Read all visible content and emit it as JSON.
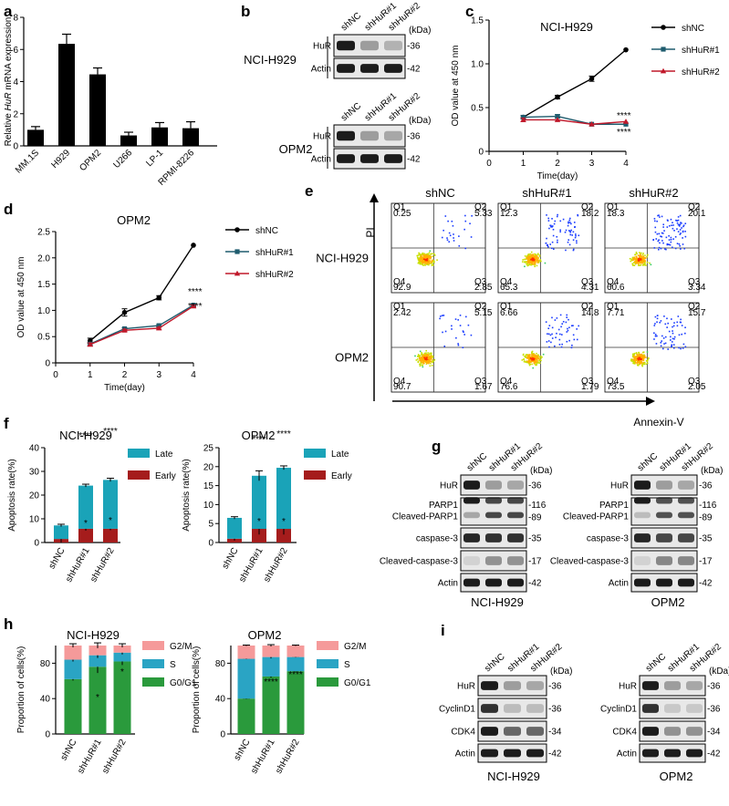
{
  "panels": {
    "a": {
      "letter": "a"
    },
    "b": {
      "letter": "b",
      "kda": "(kDa)",
      "blots": [
        {
          "cell": "NCI-H929",
          "lanes": [
            "shNC",
            "shHuR#1",
            "shHuR#2"
          ],
          "rows": [
            {
              "protein": "HuR",
              "kda": "-36"
            },
            {
              "protein": "Actin",
              "kda": "-42"
            }
          ]
        },
        {
          "cell": "OPM2",
          "lanes": [
            "shNC",
            "shHuR#1",
            "shHuR#2"
          ],
          "rows": [
            {
              "protein": "HuR",
              "kda": "-36"
            },
            {
              "protein": "Actin",
              "kda": "-42"
            }
          ]
        }
      ]
    },
    "c": {
      "letter": "c"
    },
    "d": {
      "letter": "d"
    },
    "e": {
      "letter": "e",
      "y_axis": "PI",
      "x_axis": "Annexin-V",
      "columns": [
        "shNC",
        "shHuR#1",
        "shHuR#2"
      ],
      "rows": [
        "NCI-H929",
        "OPM2"
      ],
      "quadrant_tags": [
        "Q1",
        "Q2",
        "Q3",
        "Q4"
      ],
      "quadrants": [
        [
          {
            "q1": "0.25",
            "q2": "5.33",
            "q3": "2.85",
            "q4": "92.9"
          },
          {
            "q1": "12.3",
            "q2": "18.2",
            "q3": "4.31",
            "q4": "65.3"
          },
          {
            "q1": "18.3",
            "q2": "20.1",
            "q3": "3.34",
            "q4": "60.6"
          }
        ],
        [
          {
            "q1": "2.42",
            "q2": "5.15",
            "q3": "1.67",
            "q4": "90.7"
          },
          {
            "q1": "6.66",
            "q2": "14.8",
            "q3": "1.79",
            "q4": "76.6"
          },
          {
            "q1": "7.71",
            "q2": "15.7",
            "q3": "2.05",
            "q4": "73.5"
          }
        ]
      ]
    },
    "f": {
      "letter": "f"
    },
    "g": {
      "letter": "g",
      "kda": "(kDa)",
      "blots": [
        {
          "cell": "NCI-H929",
          "lanes": [
            "shNC",
            "shHuR#1",
            "shHuR#2"
          ],
          "rows": [
            {
              "protein": "HuR",
              "kda": [
                "-36"
              ]
            },
            {
              "protein": "PARP1",
              "protein2": "Cleaved-PARP1",
              "kda": [
                "-116",
                "-89"
              ]
            },
            {
              "protein": "caspase-3",
              "kda": [
                "-35"
              ]
            },
            {
              "protein": "Cleaved-caspase-3",
              "kda": [
                "-17"
              ]
            },
            {
              "protein": "Actin",
              "kda": [
                "-42"
              ]
            }
          ]
        },
        {
          "cell": "OPM2",
          "lanes": [
            "shNC",
            "shHuR#1",
            "shHuR#2"
          ],
          "rows": [
            {
              "protein": "HuR",
              "kda": [
                "-36"
              ]
            },
            {
              "protein": "PARP1",
              "protein2": "Cleaved-PARP1",
              "kda": [
                "-116",
                "-89"
              ]
            },
            {
              "protein": "caspase-3",
              "kda": [
                "-35"
              ]
            },
            {
              "protein": "Cleaved-caspase-3",
              "kda": [
                "-17"
              ]
            },
            {
              "protein": "Actin",
              "kda": [
                "-42"
              ]
            }
          ]
        }
      ]
    },
    "h": {
      "letter": "h"
    },
    "i": {
      "letter": "i",
      "kda": "(kDa)",
      "blots": [
        {
          "cell": "NCI-H929",
          "lanes": [
            "shNC",
            "shHuR#1",
            "shHuR#2"
          ],
          "rows": [
            {
              "protein": "HuR",
              "kda": "-36"
            },
            {
              "protein": "CyclinD1",
              "kda": "-36"
            },
            {
              "protein": "CDK4",
              "kda": "-34"
            },
            {
              "protein": "Actin",
              "kda": "-42"
            }
          ]
        },
        {
          "cell": "OPM2",
          "lanes": [
            "shNC",
            "shHuR#1",
            "shHuR#2"
          ],
          "rows": [
            {
              "protein": "HuR",
              "kda": "-36"
            },
            {
              "protein": "CyclinD1",
              "kda": "-36"
            },
            {
              "protein": "CDK4",
              "kda": "-34"
            },
            {
              "protein": "Actin",
              "kda": "-42"
            }
          ]
        }
      ]
    }
  },
  "colors": {
    "late": "#1aa3b8",
    "early": "#a51c1c",
    "g2m": "#f59a9a",
    "s": "#2aa4c4",
    "g0g1": "#2a9a3c",
    "shNC": "#000000",
    "shHuR1": "#1f5c6e",
    "shHuR2": "#c0182a"
  },
  "chart_data": [
    {
      "id": "a",
      "type": "bar",
      "title": "",
      "ylabel": "Relative HuR mRNA expression",
      "ylabel_lines": [
        "Relative ",
        "HuR",
        " mRNA expression"
      ],
      "categories": [
        "MM.1S",
        "H929",
        "OPM2",
        "U266",
        "LP-1",
        "RPMI-8226"
      ],
      "values": [
        1.0,
        6.35,
        4.45,
        0.65,
        1.15,
        1.1
      ],
      "errors": [
        0.2,
        0.6,
        0.4,
        0.2,
        0.3,
        0.4
      ],
      "ylim": [
        0,
        8
      ],
      "yticks": [
        "0",
        "2",
        "4",
        "6",
        "8"
      ]
    },
    {
      "id": "c",
      "type": "line",
      "title": "NCI-H929",
      "xlabel": "Time(day)",
      "ylabel": "OD value at 450 nm",
      "x": [
        1,
        2,
        3,
        4
      ],
      "xlim": [
        0,
        4
      ],
      "ylim": [
        0,
        1.5
      ],
      "xticks": [
        "0",
        "1",
        "2",
        "3",
        "4"
      ],
      "yticks": [
        "0",
        "0.5",
        "1.0",
        "1.5"
      ],
      "series": [
        {
          "name": "shNC",
          "values": [
            0.39,
            0.62,
            0.83,
            1.16
          ],
          "errors": [
            0.02,
            0.02,
            0.03,
            0.01
          ]
        },
        {
          "name": "shHuR#1",
          "values": [
            0.39,
            0.4,
            0.31,
            0.31
          ],
          "errors": [
            0.02,
            0.02,
            0.01,
            0.01
          ]
        },
        {
          "name": "shHuR#2",
          "values": [
            0.36,
            0.36,
            0.31,
            0.34
          ],
          "errors": [
            0.02,
            0.01,
            0.01,
            0.01
          ]
        }
      ],
      "annotations": [
        "****",
        "****"
      ]
    },
    {
      "id": "d",
      "type": "line",
      "title": "OPM2",
      "xlabel": "Time(day)",
      "ylabel": "OD value at 450 nm",
      "x": [
        1,
        2,
        3,
        4
      ],
      "xlim": [
        0,
        4
      ],
      "ylim": [
        0,
        2.5
      ],
      "xticks": [
        "0",
        "1",
        "2",
        "3",
        "4"
      ],
      "yticks": [
        "0",
        "0.5",
        "1.0",
        "1.5",
        "2.0",
        "2.5"
      ],
      "series": [
        {
          "name": "shNC",
          "values": [
            0.42,
            0.96,
            1.24,
            2.24
          ],
          "errors": [
            0.05,
            0.07,
            0.04,
            0.01
          ]
        },
        {
          "name": "shHuR#1",
          "values": [
            0.36,
            0.65,
            0.71,
            1.1
          ],
          "errors": [
            0.03,
            0.02,
            0.02,
            0.02
          ]
        },
        {
          "name": "shHuR#2",
          "values": [
            0.35,
            0.62,
            0.66,
            1.08
          ],
          "errors": [
            0.03,
            0.02,
            0.02,
            0.02
          ]
        }
      ],
      "annotations": [
        "****",
        "****"
      ]
    },
    {
      "id": "f1",
      "type": "stacked-bar",
      "title": "NCI-H929",
      "ylabel": "Apoptosis rate(%)",
      "categories": [
        "shNC",
        "shHuR#1",
        "shHuR#2"
      ],
      "ylim": [
        0,
        40
      ],
      "yticks": [
        "0",
        "10",
        "20",
        "30",
        "40"
      ],
      "series": [
        {
          "name": "Early",
          "values": [
            1.5,
            5.8,
            5.8
          ],
          "errors": [
            1.5,
            0.8,
            0.6
          ]
        },
        {
          "name": "Late",
          "values": [
            5.7,
            18.2,
            20.6
          ],
          "errors": [
            0.5,
            0.6,
            0.7
          ]
        }
      ],
      "annotations": [
        "****",
        "****",
        "*",
        "*"
      ]
    },
    {
      "id": "f2",
      "type": "stacked-bar",
      "title": "OPM2",
      "ylabel": "Apoptosis rate(%)",
      "categories": [
        "shNC",
        "shHuR#1",
        "shHuR#2"
      ],
      "ylim": [
        0,
        25
      ],
      "yticks": [
        "0",
        "5",
        "10",
        "15",
        "20",
        "25"
      ],
      "series": [
        {
          "name": "Early",
          "values": [
            1.0,
            3.6,
            3.6
          ],
          "errors": [
            0.5,
            1.5,
            1.5
          ]
        },
        {
          "name": "Late",
          "values": [
            5.5,
            14.0,
            16.1
          ],
          "errors": [
            0.3,
            1.3,
            0.5
          ]
        }
      ],
      "annotations": [
        "****",
        "****",
        "*",
        "*"
      ]
    },
    {
      "id": "h1",
      "type": "stacked-bar",
      "title": "NCI-H929",
      "ylabel": "Proportion of cells(%)",
      "categories": [
        "shNC",
        "shHuR#1",
        "shHuR#2"
      ],
      "ylim": [
        0,
        100
      ],
      "yticks": [
        "0",
        "40",
        "80"
      ],
      "series": [
        {
          "name": "G0/G1",
          "values": [
            62,
            76,
            82
          ],
          "errors": [
            1.5,
            7,
            4
          ]
        },
        {
          "name": "S",
          "values": [
            22,
            13,
            10
          ],
          "errors": [
            2,
            3,
            2
          ]
        },
        {
          "name": "G2/M",
          "values": [
            16,
            11,
            8
          ],
          "errors": [
            2,
            3,
            2
          ]
        }
      ],
      "annotations": [
        "*",
        "*"
      ]
    },
    {
      "id": "h2",
      "type": "stacked-bar",
      "title": "OPM2",
      "ylabel": "Proportion of cells(%)",
      "categories": [
        "shNC",
        "shHuR#1",
        "shHuR#2"
      ],
      "ylim": [
        0,
        100
      ],
      "yticks": [
        "0",
        "40",
        "80"
      ],
      "series": [
        {
          "name": "G0/G1",
          "values": [
            40,
            65,
            71
          ],
          "errors": [
            0.5,
            1.5,
            0.5
          ]
        },
        {
          "name": "S",
          "values": [
            45,
            22,
            16
          ],
          "errors": [
            0.5,
            1.5,
            0.5
          ]
        },
        {
          "name": "G2/M",
          "values": [
            15,
            13,
            13
          ],
          "errors": [
            0.5,
            1,
            0.5
          ]
        }
      ],
      "annotations": [
        "****",
        "****"
      ]
    }
  ]
}
